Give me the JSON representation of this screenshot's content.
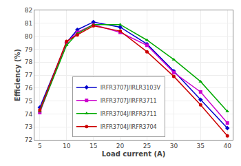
{
  "chart_data": {
    "type": "line",
    "x": [
      5,
      10,
      12,
      15,
      20,
      25,
      30,
      35,
      40
    ],
    "series": [
      {
        "name": "IRFR3707J/IRLR3103V",
        "color": "#0000cc",
        "marker": "diamond",
        "values": [
          74.5,
          79.5,
          80.5,
          81.1,
          80.7,
          79.4,
          77.3,
          75.1,
          72.9
        ]
      },
      {
        "name": "IRFR3707J/IRFR3711",
        "color": "#cc00cc",
        "marker": "square",
        "values": [
          74.1,
          79.5,
          80.3,
          80.9,
          80.3,
          79.3,
          77.2,
          75.7,
          73.3
        ]
      },
      {
        "name": "IRFR3704J/IRFR3711",
        "color": "#00aa00",
        "marker": "triangle",
        "values": [
          74.2,
          79.3,
          80.2,
          80.9,
          80.9,
          79.7,
          78.2,
          76.5,
          74.2
        ]
      },
      {
        "name": "IRFR3704J/IRFR3704",
        "color": "#cc0000",
        "marker": "circle",
        "values": [
          74.3,
          79.6,
          80.1,
          80.8,
          80.4,
          78.8,
          76.9,
          74.7,
          72.3
        ]
      }
    ],
    "xlabel": "Load current (A)",
    "ylabel": "Efficiency (%)",
    "xlim": [
      4,
      41
    ],
    "ylim": [
      72,
      82
    ],
    "xticks": [
      5,
      10,
      15,
      20,
      25,
      30,
      35,
      40
    ],
    "yticks": [
      72,
      73,
      74,
      75,
      76,
      77,
      78,
      79,
      80,
      81,
      82
    ],
    "grid": true,
    "legend": "lower center"
  }
}
